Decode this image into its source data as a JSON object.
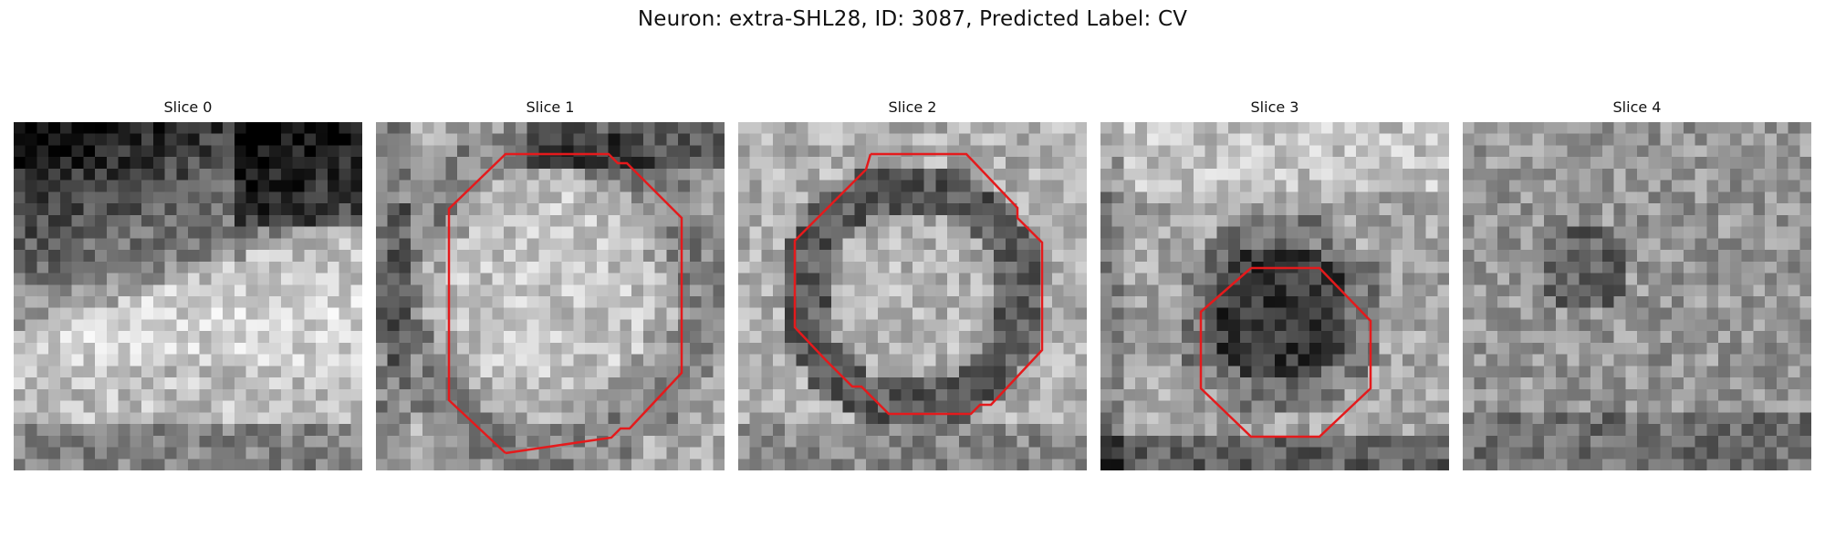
{
  "figure": {
    "title": "Neuron: extra-SHL28, ID: 3087, Predicted Label: CV"
  },
  "panels": [
    {
      "title": "Slice 0",
      "pattern": "dark-top-right-band",
      "has_outline": false
    },
    {
      "title": "Slice 1",
      "pattern": "bright-center-dark-top",
      "has_outline": true
    },
    {
      "title": "Slice 2",
      "pattern": "dark-ring",
      "has_outline": true
    },
    {
      "title": "Slice 3",
      "pattern": "dark-blob-center-lower",
      "has_outline": true
    },
    {
      "title": "Slice 4",
      "pattern": "noise-mid",
      "has_outline": false
    }
  ],
  "outline_color": "#e41a1c"
}
